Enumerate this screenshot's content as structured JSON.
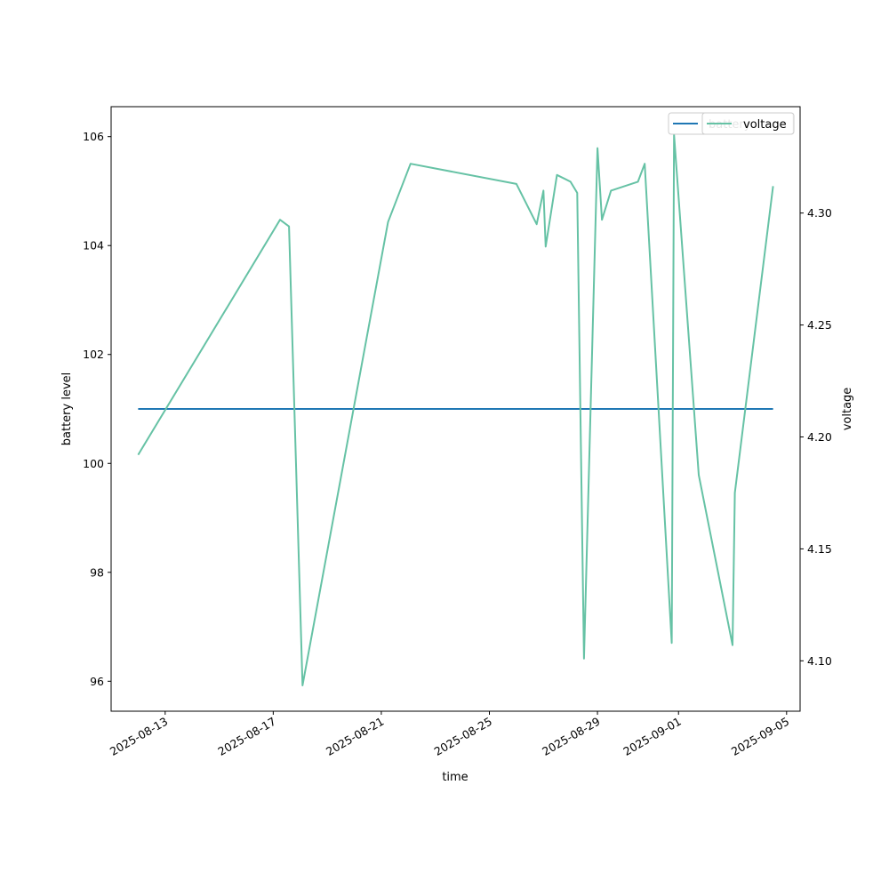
{
  "chart_data": {
    "type": "line",
    "xlabel": "time",
    "ylabel": "battery level",
    "y2label": "voltage",
    "ylim": [
      95.45,
      106.55
    ],
    "y2lim": [
      4.0775,
      4.3475
    ],
    "xlim": [
      "2025-08-11T00:00",
      "2025-09-05T12:00"
    ],
    "xticks": [
      "2025-08-13",
      "2025-08-17",
      "2025-08-21",
      "2025-08-25",
      "2025-08-29",
      "2025-09-01",
      "2025-09-05"
    ],
    "yticks": [
      96,
      98,
      100,
      102,
      104,
      106
    ],
    "y2ticks": [
      4.1,
      4.15,
      4.2,
      4.25,
      4.3
    ],
    "y2tick_labels": [
      "4.10",
      "4.15",
      "4.20",
      "4.25",
      "4.30"
    ],
    "grid": false,
    "legend_position": "top-right",
    "series": [
      {
        "name": "battery",
        "axis": "left",
        "color": "#1f77b4",
        "points": [
          {
            "x": "2025-08-12T00:00",
            "y": 101
          },
          {
            "x": "2025-09-04T12:00",
            "y": 101
          }
        ]
      },
      {
        "name": "voltage",
        "axis": "right",
        "color": "#66c2a5",
        "points": [
          {
            "x": "2025-08-12T00:00",
            "y": 4.192
          },
          {
            "x": "2025-08-17T06:00",
            "y": 4.297
          },
          {
            "x": "2025-08-17T14:00",
            "y": 4.294
          },
          {
            "x": "2025-08-18T02:00",
            "y": 4.089
          },
          {
            "x": "2025-08-21T06:00",
            "y": 4.296
          },
          {
            "x": "2025-08-22T02:00",
            "y": 4.322
          },
          {
            "x": "2025-08-26T00:00",
            "y": 4.313
          },
          {
            "x": "2025-08-26T18:00",
            "y": 4.295
          },
          {
            "x": "2025-08-27T00:00",
            "y": 4.31
          },
          {
            "x": "2025-08-27T02:00",
            "y": 4.285
          },
          {
            "x": "2025-08-27T12:00",
            "y": 4.317
          },
          {
            "x": "2025-08-28T00:00",
            "y": 4.314
          },
          {
            "x": "2025-08-28T06:00",
            "y": 4.309
          },
          {
            "x": "2025-08-28T12:00",
            "y": 4.101
          },
          {
            "x": "2025-08-29T00:00",
            "y": 4.329
          },
          {
            "x": "2025-08-29T04:00",
            "y": 4.297
          },
          {
            "x": "2025-08-29T12:00",
            "y": 4.31
          },
          {
            "x": "2025-08-30T12:00",
            "y": 4.314
          },
          {
            "x": "2025-08-30T18:00",
            "y": 4.322
          },
          {
            "x": "2025-08-31T18:00",
            "y": 4.108
          },
          {
            "x": "2025-08-31T20:00",
            "y": 4.335
          },
          {
            "x": "2025-09-01T18:00",
            "y": 4.183
          },
          {
            "x": "2025-09-03T00:00",
            "y": 4.107
          },
          {
            "x": "2025-09-03T02:00",
            "y": 4.175
          },
          {
            "x": "2025-09-04T12:00",
            "y": 4.312
          }
        ]
      }
    ]
  }
}
